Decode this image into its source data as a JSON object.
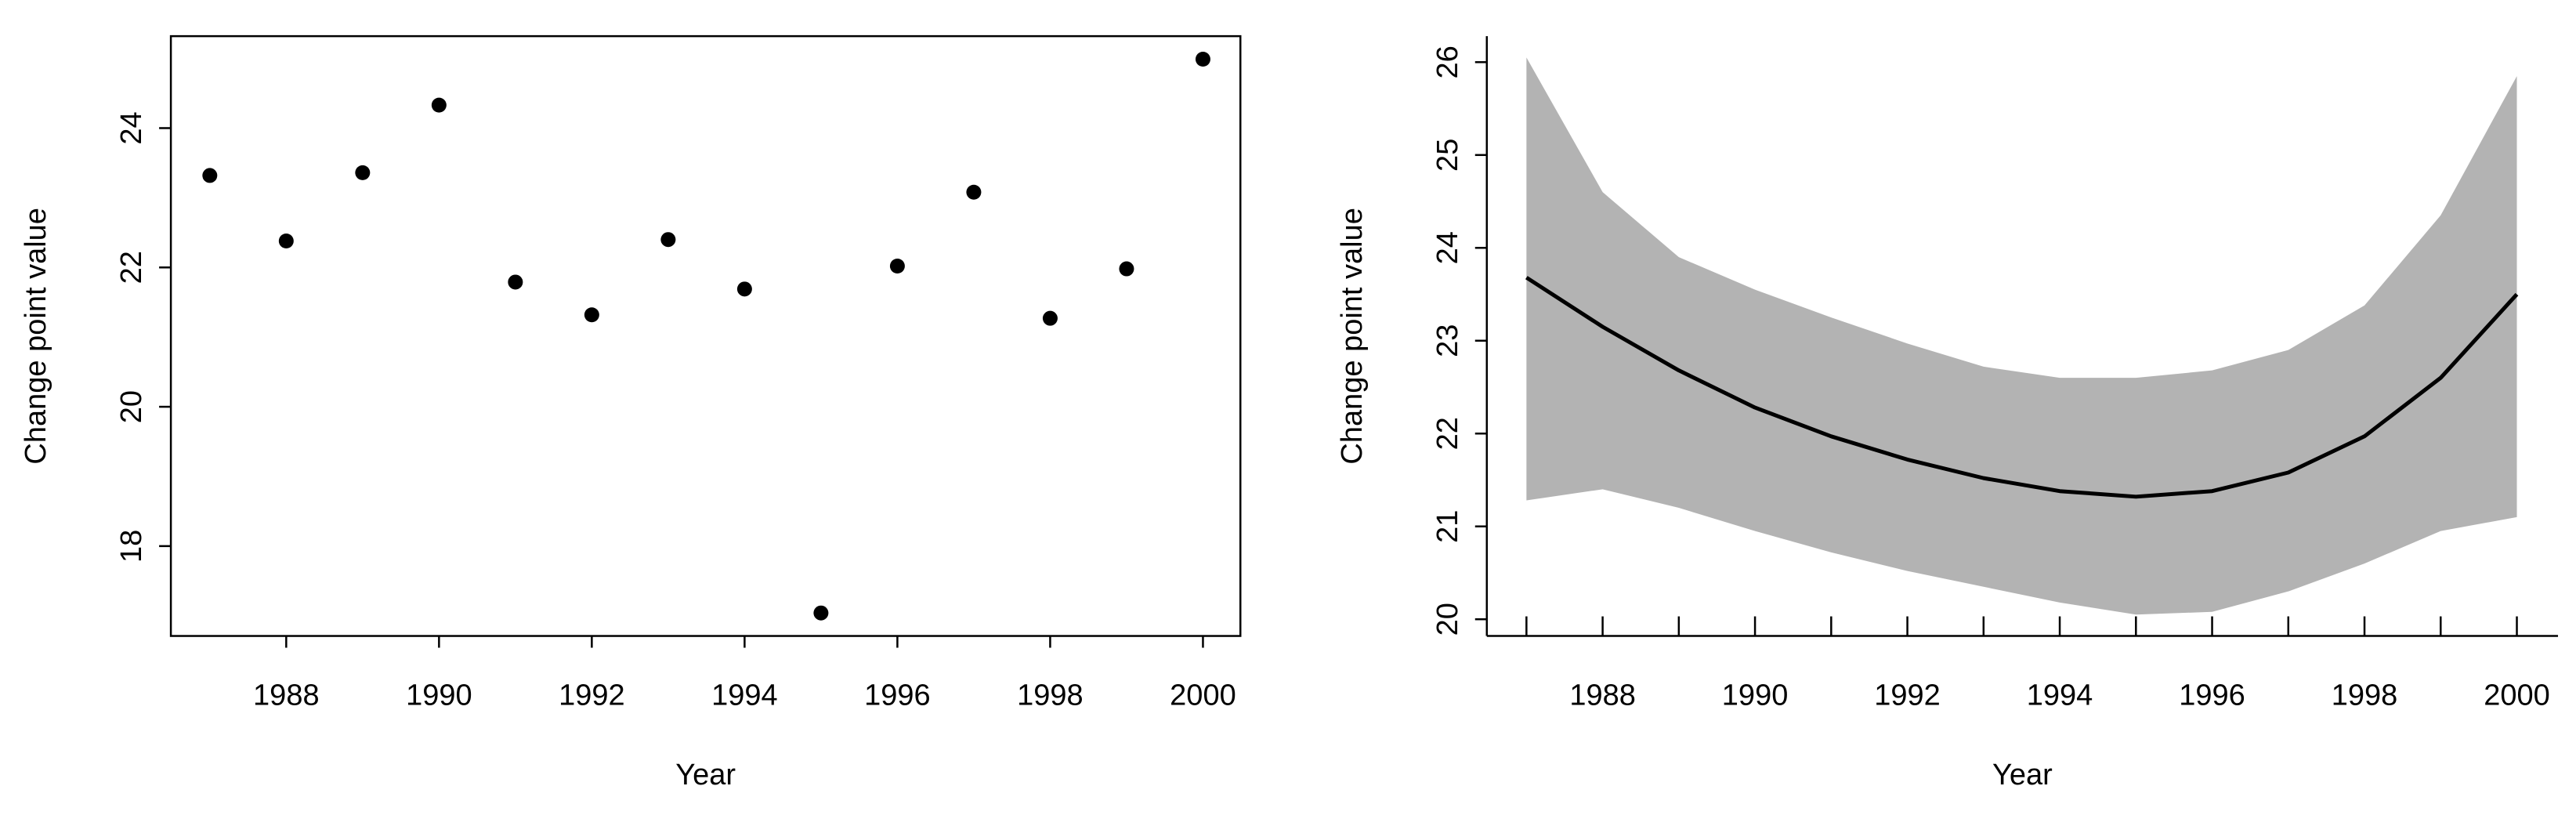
{
  "chart_data": [
    {
      "type": "scatter",
      "box": true,
      "x_label": "Year",
      "y_label": "Change point value",
      "x": [
        1987,
        1988,
        1989,
        1990,
        1991,
        1992,
        1993,
        1994,
        1995,
        1996,
        1997,
        1998,
        1999,
        2000
      ],
      "series": [
        {
          "color": "#000000",
          "values": [
            23.32,
            22.38,
            23.36,
            24.33,
            21.79,
            21.32,
            22.4,
            21.69,
            17.04,
            22.02,
            23.08,
            21.27,
            21.98,
            24.99
          ]
        }
      ],
      "xlim": [
        1986.49,
        2000.49
      ],
      "ylim": [
        16.71,
        25.32
      ],
      "xticks": [
        1988,
        1990,
        1992,
        1994,
        1996,
        1998,
        2000
      ],
      "yticks": [
        18,
        20,
        22,
        24
      ]
    },
    {
      "type": "line",
      "box": false,
      "x_label": "Year",
      "y_label": "Change point value",
      "x": [
        1987,
        1988,
        1989,
        1990,
        1991,
        1992,
        1993,
        1994,
        1995,
        1996,
        1997,
        1998,
        1999,
        2000
      ],
      "band": {
        "color": "#b3b3b3",
        "upper": [
          26.05,
          24.6,
          23.9,
          23.55,
          23.25,
          22.97,
          22.72,
          22.6,
          22.6,
          22.68,
          22.9,
          23.38,
          24.35,
          25.85
        ],
        "lower": [
          21.28,
          21.4,
          21.2,
          20.95,
          20.72,
          20.52,
          20.35,
          20.18,
          20.05,
          20.08,
          20.3,
          20.6,
          20.95,
          21.1
        ]
      },
      "series": [
        {
          "color": "#000000",
          "values": [
            23.68,
            23.15,
            22.68,
            22.28,
            21.97,
            21.72,
            21.52,
            21.38,
            21.32,
            21.38,
            21.58,
            21.97,
            22.6,
            23.5
          ]
        }
      ],
      "xlim": [
        1986.48,
        2000.54
      ],
      "ylim": [
        19.82,
        26.28
      ],
      "xticks": [
        1988,
        1990,
        1992,
        1994,
        1996,
        1998,
        2000
      ],
      "minor_xticks": [
        1987,
        1989,
        1991,
        1993,
        1995,
        1997,
        1999
      ],
      "yticks": [
        20,
        21,
        22,
        23,
        24,
        25,
        26
      ]
    }
  ]
}
